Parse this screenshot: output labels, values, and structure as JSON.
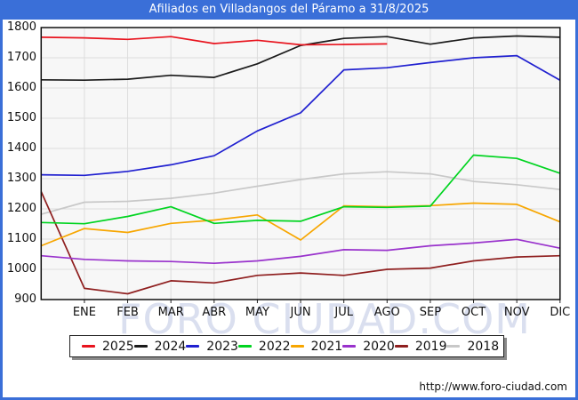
{
  "window": {
    "title": "Afiliados en Villadangos del Páramo a 31/8/2025",
    "title_bar_color": "#3a6fd8",
    "frame_color": "#3a6fd8"
  },
  "watermark_text": "FORO CIUDAD.COM",
  "footer": {
    "url_text": "http://www.foro-ciudad.com"
  },
  "legend": {
    "entries": [
      {
        "label": "2025",
        "color": "#e8141e"
      },
      {
        "label": "2024",
        "color": "#1a1a1a"
      },
      {
        "label": "2023",
        "color": "#2020d0"
      },
      {
        "label": "2022",
        "color": "#00d420"
      },
      {
        "label": "2021",
        "color": "#f7a600"
      },
      {
        "label": "2020",
        "color": "#9932cc"
      },
      {
        "label": "2019",
        "color": "#8f1f1f"
      },
      {
        "label": "2018",
        "color": "#c8c8c8"
      }
    ]
  },
  "chart_data": {
    "type": "line",
    "title": "Afiliados en Villadangos del Páramo a 31/8/2025",
    "xlabel": "",
    "ylabel": "",
    "ylim": [
      900,
      1800
    ],
    "y_ticks": [
      900,
      1000,
      1100,
      1200,
      1300,
      1400,
      1500,
      1600,
      1700,
      1800
    ],
    "x_tick_labels": [
      "ENE",
      "FEB",
      "MAR",
      "ABR",
      "MAY",
      "JUN",
      "JUL",
      "AGO",
      "SEP",
      "OCT",
      "NOV",
      "DIC"
    ],
    "grid": true,
    "legend_position": "bottom",
    "first_value_at_left_border": true,
    "series": [
      {
        "name": "2025",
        "color": "#e8141e",
        "values": [
          1768,
          1766,
          1761,
          1770,
          1747,
          1758,
          1743,
          1744,
          1746
        ]
      },
      {
        "name": "2024",
        "color": "#1a1a1a",
        "values": [
          1627,
          1626,
          1629,
          1642,
          1635,
          1680,
          1741,
          1764,
          1770,
          1745,
          1766,
          1772,
          1768
        ]
      },
      {
        "name": "2023",
        "color": "#2020d0",
        "values": [
          1313,
          1311,
          1324,
          1346,
          1376,
          1458,
          1518,
          1660,
          1667,
          1684,
          1700,
          1707,
          1626
        ]
      },
      {
        "name": "2022",
        "color": "#00d420",
        "values": [
          1155,
          1151,
          1175,
          1207,
          1152,
          1162,
          1159,
          1207,
          1205,
          1209,
          1378,
          1367,
          1318
        ]
      },
      {
        "name": "2021",
        "color": "#f7a600",
        "values": [
          1078,
          1135,
          1122,
          1152,
          1163,
          1180,
          1097,
          1210,
          1207,
          1211,
          1219,
          1215,
          1157
        ]
      },
      {
        "name": "2020",
        "color": "#9932cc",
        "values": [
          1045,
          1033,
          1028,
          1026,
          1020,
          1028,
          1043,
          1065,
          1063,
          1078,
          1087,
          1099,
          1070
        ]
      },
      {
        "name": "2019",
        "color": "#8f1f1f",
        "values": [
          1257,
          937,
          919,
          962,
          955,
          980,
          988,
          980,
          1000,
          1004,
          1028,
          1041,
          1045
        ]
      },
      {
        "name": "2018",
        "color": "#c8c8c8",
        "values": [
          1182,
          1222,
          1225,
          1235,
          1252,
          1275,
          1297,
          1316,
          1323,
          1316,
          1291,
          1280,
          1264
        ]
      }
    ]
  }
}
